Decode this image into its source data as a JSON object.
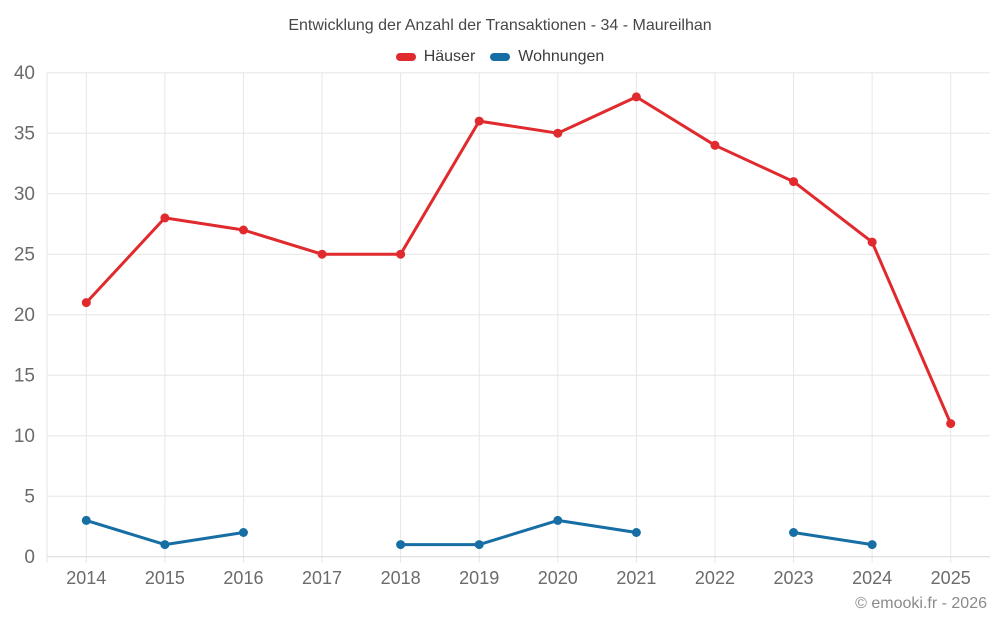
{
  "chart_data": {
    "type": "line",
    "title": "Entwicklung der Anzahl der Transaktionen - 34 - Maureilhan",
    "categories": [
      "2014",
      "2015",
      "2016",
      "2017",
      "2018",
      "2019",
      "2020",
      "2021",
      "2022",
      "2023",
      "2024",
      "2025"
    ],
    "series": [
      {
        "name": "Häuser",
        "color": "#e02a2d",
        "values": [
          21,
          28,
          27,
          25,
          25,
          36,
          35,
          38,
          34,
          31,
          26,
          11
        ]
      },
      {
        "name": "Wohnungen",
        "color": "#166ea4",
        "values": [
          3,
          1,
          2,
          null,
          1,
          1,
          3,
          2,
          null,
          2,
          1,
          null
        ]
      }
    ],
    "xlabel": "",
    "ylabel": "",
    "ylim": [
      0,
      40
    ],
    "yticks": [
      0,
      5,
      10,
      15,
      20,
      25,
      30,
      35,
      40
    ],
    "grid": true,
    "legend_position": "top",
    "footer": "© emooki.fr - 2026"
  },
  "colors": {
    "background": "#ffffff",
    "gridline": "#e6e6e6",
    "axis_line": "#d9d9d9",
    "tick_label": "#6b6b6b",
    "title": "#474747",
    "legend_label": "#3c3c3c",
    "footer": "#8a8a8a"
  }
}
